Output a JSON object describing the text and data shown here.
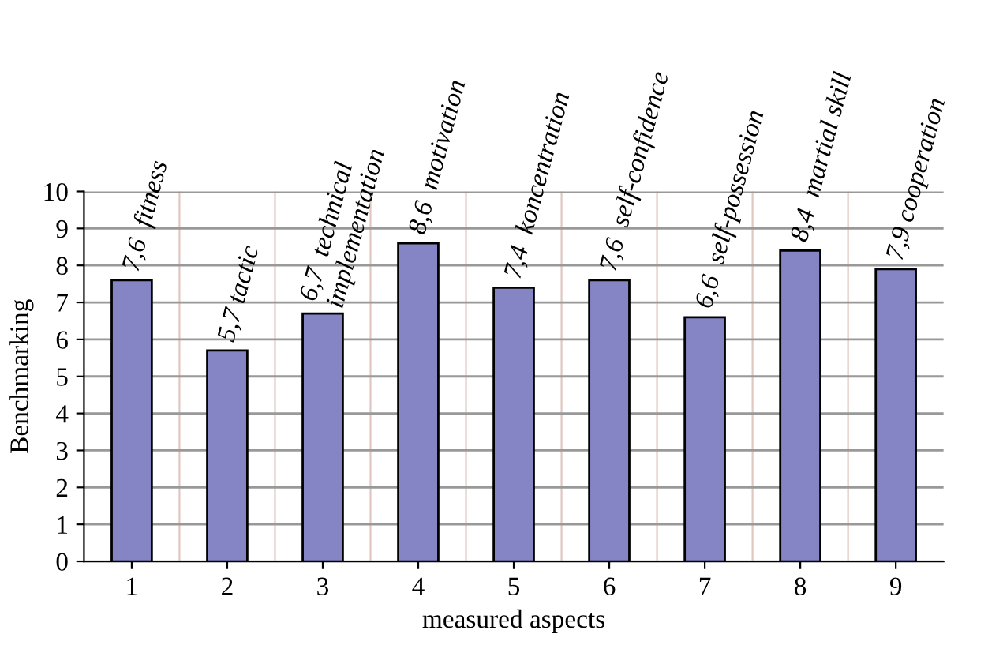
{
  "chart_data": {
    "type": "bar",
    "xlabel": "measured aspects",
    "ylabel": "Benchmarking",
    "categories": [
      "1",
      "2",
      "3",
      "4",
      "5",
      "6",
      "7",
      "8",
      "9"
    ],
    "values": [
      7.6,
      5.7,
      6.7,
      8.6,
      7.4,
      7.6,
      6.6,
      8.4,
      7.9
    ],
    "value_labels": [
      "7,6  fitness",
      "5,7 tactic",
      "6,7  technical\nimplementation",
      "8,6  motivation",
      "7,4  koncentration",
      "7,6  self-confidence",
      "6,6  self-possession",
      "8,4  martial skill",
      "7,9 cooperation"
    ],
    "color": "#8585c5",
    "ylim": [
      0,
      10
    ],
    "yticks": [
      0,
      1,
      2,
      3,
      4,
      5,
      6,
      7,
      8,
      9,
      10
    ],
    "grid": true
  }
}
